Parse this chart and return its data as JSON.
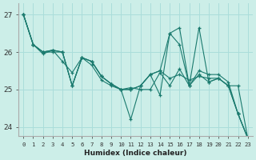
{
  "xlabel": "Humidex (Indice chaleur)",
  "bg_color": "#cceee8",
  "grid_color": "#aaddda",
  "line_color": "#1a7a6e",
  "xlim": [
    -0.5,
    23.5
  ],
  "ylim": [
    23.75,
    27.3
  ],
  "yticks": [
    24,
    25,
    26,
    27
  ],
  "series": [
    [
      27.0,
      26.2,
      26.0,
      26.0,
      26.0,
      25.1,
      25.85,
      25.75,
      25.35,
      25.15,
      25.0,
      25.0,
      25.1,
      25.4,
      25.5,
      25.3,
      25.4,
      25.25,
      25.35,
      25.3,
      25.3,
      25.1,
      24.35,
      23.7
    ],
    [
      27.0,
      26.2,
      25.95,
      26.05,
      25.75,
      25.45,
      25.85,
      25.65,
      25.25,
      25.1,
      25.0,
      25.05,
      25.0,
      25.0,
      25.45,
      25.1,
      25.55,
      25.1,
      25.5,
      25.4,
      25.4,
      25.2,
      24.35,
      23.7
    ],
    [
      27.0,
      26.2,
      26.0,
      26.05,
      26.0,
      25.1,
      25.85,
      25.75,
      25.35,
      25.15,
      25.0,
      24.2,
      25.1,
      25.4,
      25.5,
      26.5,
      26.2,
      25.1,
      25.4,
      25.2,
      25.3,
      25.1,
      24.35,
      23.7
    ],
    [
      27.0,
      26.2,
      26.0,
      26.05,
      26.0,
      25.1,
      25.85,
      25.75,
      25.35,
      25.15,
      25.0,
      25.0,
      25.1,
      25.4,
      24.85,
      26.5,
      26.65,
      25.1,
      26.65,
      25.2,
      25.3,
      25.1,
      25.1,
      23.7
    ]
  ]
}
